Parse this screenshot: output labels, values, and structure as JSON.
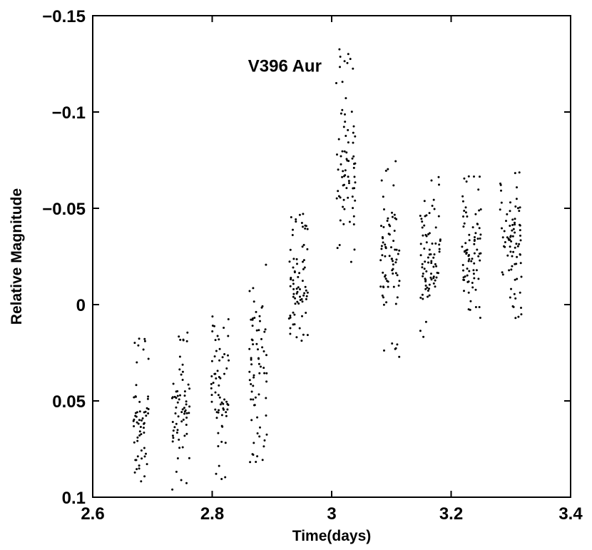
{
  "chart_data": {
    "type": "scatter",
    "title": "",
    "annotation": "V396 Aur",
    "xlabel": "Time(days)",
    "ylabel": "Relative Magnitude",
    "xlim": [
      2.6,
      3.4
    ],
    "ylim": [
      -0.15,
      0.1
    ],
    "y_inverted": true,
    "grid": false,
    "x_ticks": [
      2.6,
      2.8,
      3.0,
      3.2,
      3.4
    ],
    "x_tick_labels": [
      "2.6",
      "2.8",
      "3",
      "3.2",
      "3.4"
    ],
    "y_ticks": [
      -0.15,
      -0.1,
      -0.05,
      0,
      0.05,
      0.1
    ],
    "y_tick_labels": [
      "−0.15",
      "−0.1",
      "−0.05",
      "0",
      "0.05",
      "0.1"
    ],
    "marker_color": "#000000",
    "clusters": [
      {
        "x_range": [
          2.668,
          2.695
        ],
        "y_range": [
          0.015,
          0.1
        ],
        "y_center": 0.063,
        "n": 60,
        "seed": 11
      },
      {
        "x_range": [
          2.733,
          2.762
        ],
        "y_range": [
          0.012,
          0.097
        ],
        "y_center": 0.056,
        "n": 65,
        "seed": 23
      },
      {
        "x_range": [
          2.798,
          2.828
        ],
        "y_range": [
          0.005,
          0.092
        ],
        "y_center": 0.045,
        "n": 65,
        "seed": 37
      },
      {
        "x_range": [
          2.862,
          2.892
        ],
        "y_range": [
          -0.021,
          0.083
        ],
        "y_center": 0.03,
        "n": 70,
        "seed": 41
      },
      {
        "x_range": [
          2.928,
          2.96
        ],
        "y_range": [
          -0.048,
          0.03
        ],
        "y_center": -0.007,
        "n": 75,
        "seed": 53
      },
      {
        "x_range": [
          3.007,
          3.04
        ],
        "y_range": [
          -0.145,
          -0.022
        ],
        "y_center": -0.07,
        "n": 75,
        "seed": 61
      },
      {
        "x_range": [
          3.082,
          3.114
        ],
        "y_range": [
          -0.075,
          0.029
        ],
        "y_center": -0.028,
        "n": 75,
        "seed": 71
      },
      {
        "x_range": [
          3.148,
          3.182
        ],
        "y_range": [
          -0.068,
          0.018
        ],
        "y_center": -0.022,
        "n": 80,
        "seed": 83
      },
      {
        "x_range": [
          3.218,
          3.25
        ],
        "y_range": [
          -0.069,
          0.009
        ],
        "y_center": -0.028,
        "n": 80,
        "seed": 97
      },
      {
        "x_range": [
          3.282,
          3.318
        ],
        "y_range": [
          -0.07,
          0.007
        ],
        "y_center": -0.033,
        "n": 80,
        "seed": 103
      }
    ]
  }
}
